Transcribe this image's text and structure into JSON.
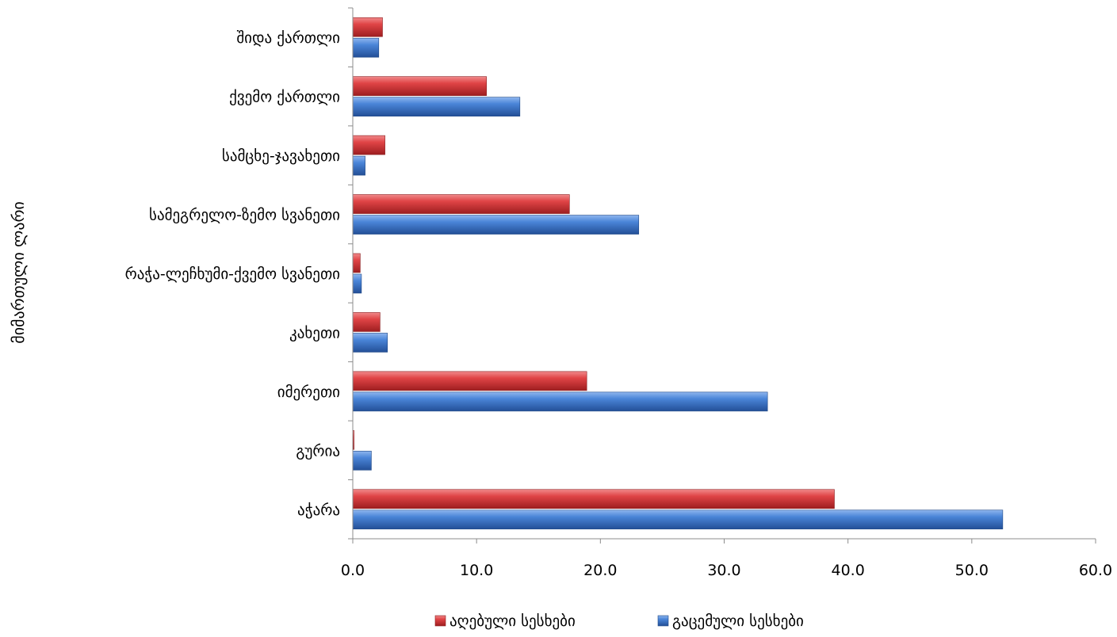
{
  "chart_data": {
    "type": "bar",
    "orientation": "horizontal",
    "title": "",
    "xlabel": "",
    "ylabel": "მიმართული ლარი",
    "xlim": [
      0,
      60
    ],
    "x_ticks": [
      "0.0",
      "10.0",
      "20.0",
      "30.0",
      "40.0",
      "50.0",
      "60.0"
    ],
    "grid": false,
    "legend_position": "bottom",
    "categories": [
      "აჭარა",
      "გურია",
      "იმერეთი",
      "კახეთი",
      "რაჭა-ლეჩხუმი-ქვემო სვანეთი",
      "სამეგრელო-ზემო სვანეთი",
      "სამცხე-ჯავახეთი",
      "ქვემო ქართლი",
      "შიდა ქართლი"
    ],
    "series": [
      {
        "name": "აღებული სესხები",
        "color": "#d9393b",
        "values": [
          38.9,
          0.1,
          18.9,
          2.2,
          0.6,
          17.5,
          2.6,
          10.8,
          2.4
        ]
      },
      {
        "name": "გაცემული სესხები",
        "color": "#3a74c9",
        "values": [
          52.5,
          1.5,
          33.5,
          2.8,
          0.7,
          23.1,
          1.0,
          13.5,
          2.1
        ]
      }
    ]
  }
}
